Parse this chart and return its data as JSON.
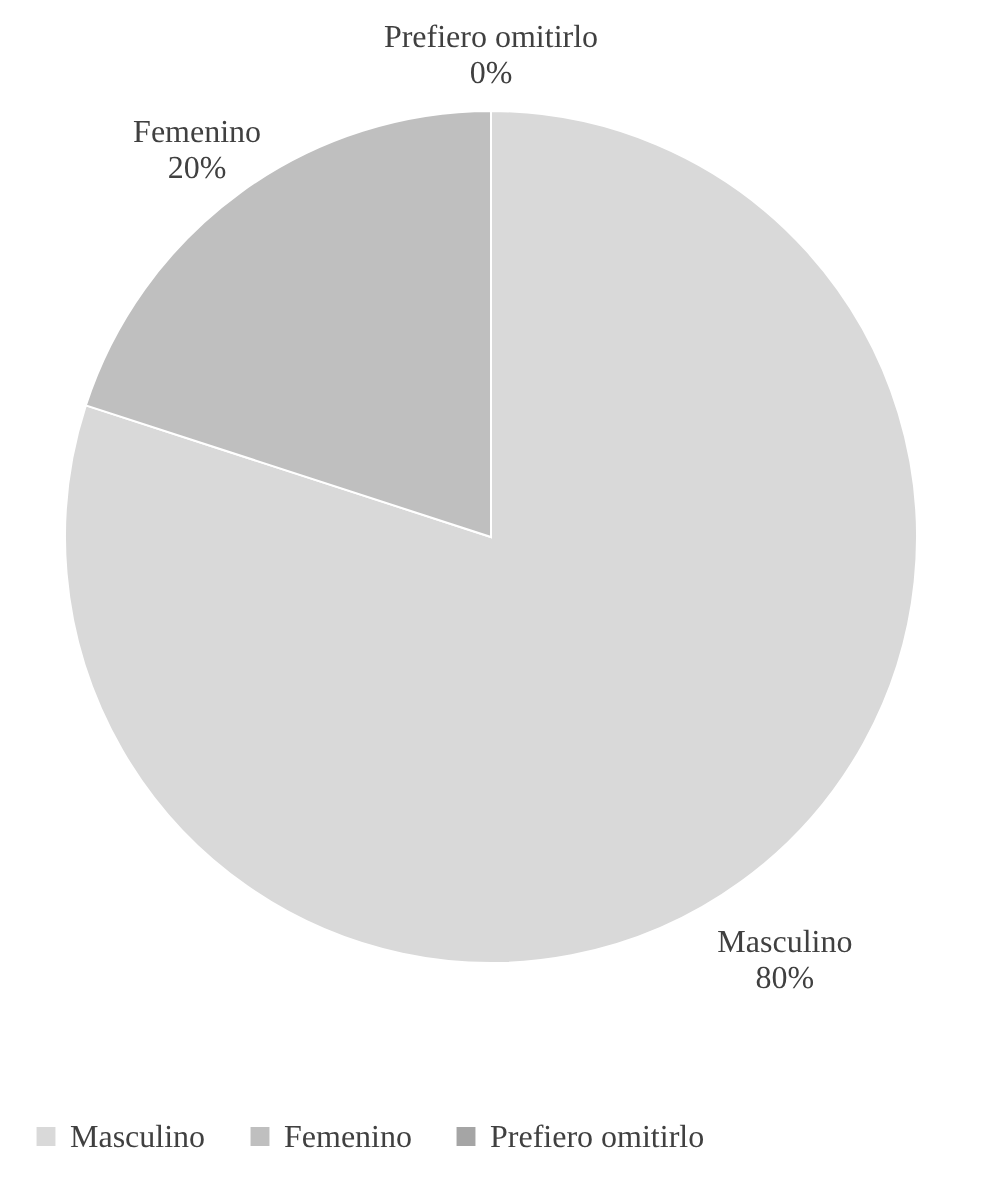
{
  "chart_data": {
    "type": "pie",
    "categories": [
      "Masculino",
      "Femenino",
      "Prefiero omitirlo"
    ],
    "values": [
      80,
      20,
      0
    ],
    "colors": [
      "#d9d9d9",
      "#bfbfbf",
      "#a5a5a5"
    ],
    "value_labels": [
      "80%",
      "20%",
      "0%"
    ],
    "legend": "bottom"
  }
}
